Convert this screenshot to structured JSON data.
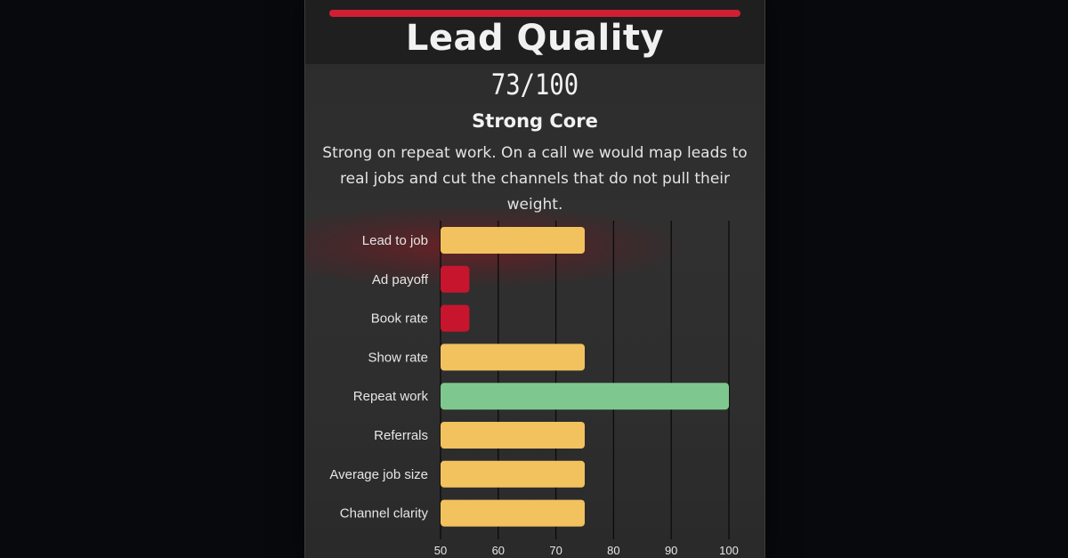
{
  "header": {
    "title": "Lead Quality",
    "score": "73/100",
    "grade": "Strong Core",
    "description_line1": "Strong on repeat work. On a call we would map leads to",
    "description_line2": "real jobs and cut the channels that do not pull their weight."
  },
  "colors": {
    "background": "#07090d",
    "card": "#2d2d2d",
    "accent": "#d01f32",
    "bar_mid": "#f2c25e",
    "bar_low": "#c8152e",
    "bar_high": "#7ec88f",
    "grid": "#0b0b0b"
  },
  "chart_data": {
    "type": "bar",
    "orientation": "horizontal",
    "title": "",
    "xlabel": "",
    "ylabel": "",
    "categories": [
      "Lead to job",
      "Ad payoff",
      "Book rate",
      "Show rate",
      "Repeat work",
      "Referrals",
      "Average job size",
      "Channel clarity"
    ],
    "values": [
      75,
      55,
      55,
      75,
      100,
      75,
      75,
      75
    ],
    "bar_colors": [
      "#f2c25e",
      "#c8152e",
      "#c8152e",
      "#f2c25e",
      "#7ec88f",
      "#f2c25e",
      "#f2c25e",
      "#f2c25e"
    ],
    "xlim": [
      50,
      100
    ],
    "xticks": [
      "50",
      "60",
      "70",
      "80",
      "90",
      "100"
    ],
    "xtick_values": [
      50,
      60,
      70,
      80,
      90,
      100
    ],
    "grid": true
  }
}
